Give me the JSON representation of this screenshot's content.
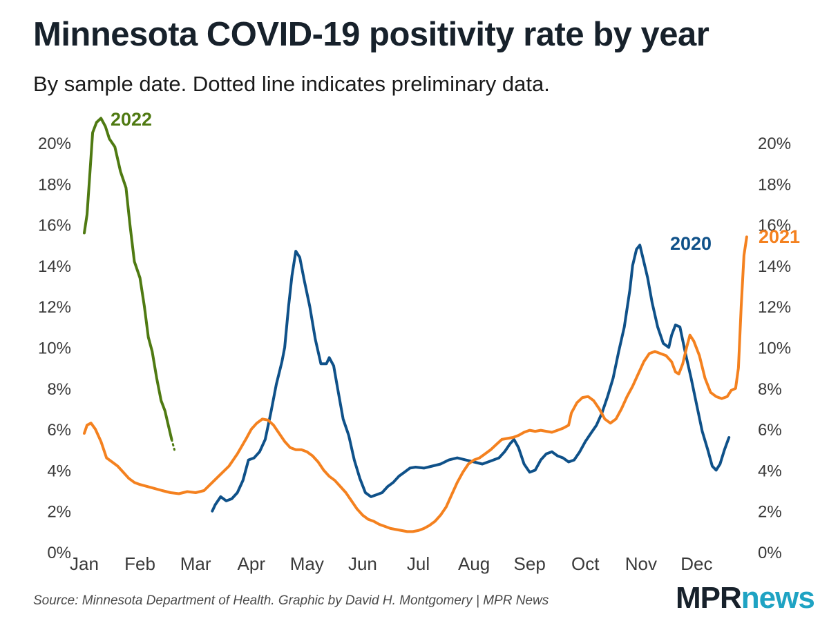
{
  "header": {
    "title": "Minnesota COVID-19 positivity rate by year",
    "subtitle": "By sample date. Dotted line indicates preliminary data."
  },
  "footer": {
    "source": "Source: Minnesota Department of Health. Graphic by David H. Montgomery | MPR News",
    "logo_mpr": "MPR",
    "logo_news": "news"
  },
  "colors": {
    "2020": "#0f5189",
    "2021": "#f4811f",
    "2022": "#4f7a12",
    "axis_text": "#3a3a3a"
  },
  "chart_data": {
    "type": "line",
    "title": "Minnesota COVID-19 positivity rate by year",
    "xlabel": "",
    "ylabel": "",
    "x_domain": [
      0,
      12
    ],
    "ylim": [
      0,
      20
    ],
    "y_ticks": [
      0,
      2,
      4,
      6,
      8,
      10,
      12,
      14,
      16,
      18,
      20
    ],
    "y_tick_labels": [
      "0%",
      "2%",
      "4%",
      "6%",
      "8%",
      "10%",
      "12%",
      "14%",
      "16%",
      "18%",
      "20%"
    ],
    "categories": [
      "Jan",
      "Feb",
      "Mar",
      "Apr",
      "May",
      "Jun",
      "Jul",
      "Aug",
      "Sep",
      "Oct",
      "Nov",
      "Dec"
    ],
    "grid": false,
    "legend": "inline-labels",
    "series": [
      {
        "name": "2020",
        "label": "2020",
        "points": [
          [
            2.3,
            2.0
          ],
          [
            2.35,
            2.3
          ],
          [
            2.45,
            2.7
          ],
          [
            2.55,
            2.5
          ],
          [
            2.65,
            2.6
          ],
          [
            2.75,
            2.9
          ],
          [
            2.85,
            3.5
          ],
          [
            2.95,
            4.5
          ],
          [
            3.05,
            4.6
          ],
          [
            3.15,
            4.9
          ],
          [
            3.25,
            5.5
          ],
          [
            3.35,
            6.8
          ],
          [
            3.45,
            8.2
          ],
          [
            3.55,
            9.3
          ],
          [
            3.6,
            10.0
          ],
          [
            3.67,
            12.0
          ],
          [
            3.73,
            13.5
          ],
          [
            3.8,
            14.7
          ],
          [
            3.87,
            14.4
          ],
          [
            3.95,
            13.3
          ],
          [
            4.05,
            12.0
          ],
          [
            4.15,
            10.4
          ],
          [
            4.25,
            9.2
          ],
          [
            4.35,
            9.2
          ],
          [
            4.4,
            9.5
          ],
          [
            4.48,
            9.1
          ],
          [
            4.55,
            8.0
          ],
          [
            4.65,
            6.5
          ],
          [
            4.75,
            5.7
          ],
          [
            4.85,
            4.5
          ],
          [
            4.95,
            3.6
          ],
          [
            5.05,
            2.9
          ],
          [
            5.15,
            2.7
          ],
          [
            5.25,
            2.8
          ],
          [
            5.35,
            2.9
          ],
          [
            5.45,
            3.2
          ],
          [
            5.55,
            3.4
          ],
          [
            5.65,
            3.7
          ],
          [
            5.75,
            3.9
          ],
          [
            5.85,
            4.1
          ],
          [
            5.95,
            4.15
          ],
          [
            6.1,
            4.1
          ],
          [
            6.25,
            4.2
          ],
          [
            6.4,
            4.3
          ],
          [
            6.55,
            4.5
          ],
          [
            6.7,
            4.6
          ],
          [
            6.85,
            4.5
          ],
          [
            7.0,
            4.4
          ],
          [
            7.15,
            4.3
          ],
          [
            7.3,
            4.45
          ],
          [
            7.45,
            4.6
          ],
          [
            7.55,
            4.9
          ],
          [
            7.65,
            5.3
          ],
          [
            7.72,
            5.5
          ],
          [
            7.8,
            5.1
          ],
          [
            7.9,
            4.3
          ],
          [
            8.0,
            3.9
          ],
          [
            8.1,
            4.0
          ],
          [
            8.2,
            4.5
          ],
          [
            8.3,
            4.8
          ],
          [
            8.4,
            4.9
          ],
          [
            8.5,
            4.7
          ],
          [
            8.6,
            4.6
          ],
          [
            8.7,
            4.4
          ],
          [
            8.8,
            4.5
          ],
          [
            8.9,
            4.9
          ],
          [
            9.0,
            5.4
          ],
          [
            9.1,
            5.8
          ],
          [
            9.2,
            6.2
          ],
          [
            9.3,
            6.8
          ],
          [
            9.4,
            7.6
          ],
          [
            9.5,
            8.5
          ],
          [
            9.6,
            9.8
          ],
          [
            9.7,
            11.0
          ],
          [
            9.8,
            12.8
          ],
          [
            9.85,
            14.0
          ],
          [
            9.92,
            14.8
          ],
          [
            9.98,
            15.0
          ],
          [
            10.05,
            14.2
          ],
          [
            10.12,
            13.4
          ],
          [
            10.2,
            12.2
          ],
          [
            10.3,
            11.0
          ],
          [
            10.4,
            10.2
          ],
          [
            10.5,
            10.0
          ],
          [
            10.55,
            10.6
          ],
          [
            10.62,
            11.1
          ],
          [
            10.7,
            11.0
          ],
          [
            10.8,
            9.7
          ],
          [
            10.9,
            8.5
          ],
          [
            11.0,
            7.2
          ],
          [
            11.1,
            5.9
          ],
          [
            11.2,
            5.0
          ],
          [
            11.28,
            4.2
          ],
          [
            11.35,
            4.0
          ],
          [
            11.42,
            4.3
          ],
          [
            11.5,
            5.0
          ],
          [
            11.58,
            5.6
          ]
        ]
      },
      {
        "name": "2021",
        "label": "2021",
        "points": [
          [
            0.0,
            5.8
          ],
          [
            0.05,
            6.2
          ],
          [
            0.12,
            6.3
          ],
          [
            0.2,
            6.0
          ],
          [
            0.3,
            5.4
          ],
          [
            0.4,
            4.6
          ],
          [
            0.5,
            4.4
          ],
          [
            0.6,
            4.2
          ],
          [
            0.7,
            3.9
          ],
          [
            0.8,
            3.6
          ],
          [
            0.9,
            3.4
          ],
          [
            1.0,
            3.3
          ],
          [
            1.2,
            3.15
          ],
          [
            1.4,
            3.0
          ],
          [
            1.55,
            2.9
          ],
          [
            1.7,
            2.85
          ],
          [
            1.85,
            2.95
          ],
          [
            2.0,
            2.9
          ],
          [
            2.15,
            3.0
          ],
          [
            2.3,
            3.4
          ],
          [
            2.45,
            3.8
          ],
          [
            2.6,
            4.2
          ],
          [
            2.75,
            4.8
          ],
          [
            2.9,
            5.5
          ],
          [
            3.0,
            6.0
          ],
          [
            3.1,
            6.3
          ],
          [
            3.2,
            6.5
          ],
          [
            3.3,
            6.45
          ],
          [
            3.4,
            6.2
          ],
          [
            3.5,
            5.8
          ],
          [
            3.6,
            5.4
          ],
          [
            3.7,
            5.1
          ],
          [
            3.8,
            5.0
          ],
          [
            3.9,
            5.0
          ],
          [
            4.0,
            4.9
          ],
          [
            4.1,
            4.7
          ],
          [
            4.2,
            4.4
          ],
          [
            4.3,
            4.0
          ],
          [
            4.4,
            3.7
          ],
          [
            4.5,
            3.5
          ],
          [
            4.6,
            3.2
          ],
          [
            4.7,
            2.9
          ],
          [
            4.8,
            2.5
          ],
          [
            4.9,
            2.1
          ],
          [
            5.0,
            1.8
          ],
          [
            5.1,
            1.6
          ],
          [
            5.2,
            1.5
          ],
          [
            5.3,
            1.35
          ],
          [
            5.4,
            1.25
          ],
          [
            5.5,
            1.15
          ],
          [
            5.6,
            1.1
          ],
          [
            5.7,
            1.05
          ],
          [
            5.8,
            1.0
          ],
          [
            5.9,
            1.0
          ],
          [
            6.0,
            1.05
          ],
          [
            6.1,
            1.15
          ],
          [
            6.2,
            1.3
          ],
          [
            6.3,
            1.5
          ],
          [
            6.4,
            1.8
          ],
          [
            6.5,
            2.2
          ],
          [
            6.6,
            2.8
          ],
          [
            6.7,
            3.4
          ],
          [
            6.8,
            3.9
          ],
          [
            6.9,
            4.3
          ],
          [
            7.0,
            4.5
          ],
          [
            7.1,
            4.6
          ],
          [
            7.2,
            4.8
          ],
          [
            7.3,
            5.0
          ],
          [
            7.4,
            5.25
          ],
          [
            7.5,
            5.5
          ],
          [
            7.6,
            5.55
          ],
          [
            7.7,
            5.6
          ],
          [
            7.8,
            5.7
          ],
          [
            7.9,
            5.85
          ],
          [
            8.0,
            5.95
          ],
          [
            8.1,
            5.9
          ],
          [
            8.2,
            5.95
          ],
          [
            8.3,
            5.9
          ],
          [
            8.4,
            5.85
          ],
          [
            8.5,
            5.95
          ],
          [
            8.6,
            6.05
          ],
          [
            8.7,
            6.2
          ],
          [
            8.75,
            6.8
          ],
          [
            8.85,
            7.3
          ],
          [
            8.95,
            7.55
          ],
          [
            9.05,
            7.6
          ],
          [
            9.15,
            7.4
          ],
          [
            9.25,
            7.0
          ],
          [
            9.35,
            6.5
          ],
          [
            9.45,
            6.3
          ],
          [
            9.55,
            6.5
          ],
          [
            9.65,
            7.0
          ],
          [
            9.75,
            7.6
          ],
          [
            9.85,
            8.1
          ],
          [
            9.95,
            8.7
          ],
          [
            10.05,
            9.3
          ],
          [
            10.15,
            9.7
          ],
          [
            10.25,
            9.8
          ],
          [
            10.35,
            9.7
          ],
          [
            10.45,
            9.6
          ],
          [
            10.55,
            9.3
          ],
          [
            10.62,
            8.8
          ],
          [
            10.68,
            8.7
          ],
          [
            10.75,
            9.2
          ],
          [
            10.82,
            10.0
          ],
          [
            10.88,
            10.6
          ],
          [
            10.95,
            10.3
          ],
          [
            11.05,
            9.6
          ],
          [
            11.15,
            8.5
          ],
          [
            11.25,
            7.8
          ],
          [
            11.35,
            7.6
          ],
          [
            11.45,
            7.5
          ],
          [
            11.55,
            7.6
          ],
          [
            11.62,
            7.9
          ],
          [
            11.7,
            8.0
          ],
          [
            11.75,
            9.0
          ],
          [
            11.8,
            12.0
          ],
          [
            11.85,
            14.5
          ],
          [
            11.9,
            15.4
          ]
        ]
      },
      {
        "name": "2022",
        "label": "2022",
        "points": [
          [
            0.0,
            15.6
          ],
          [
            0.05,
            16.5
          ],
          [
            0.1,
            18.5
          ],
          [
            0.15,
            20.5
          ],
          [
            0.22,
            21.0
          ],
          [
            0.3,
            21.2
          ],
          [
            0.38,
            20.8
          ],
          [
            0.45,
            20.2
          ],
          [
            0.55,
            19.8
          ],
          [
            0.65,
            18.6
          ],
          [
            0.75,
            17.8
          ],
          [
            0.82,
            16.0
          ],
          [
            0.9,
            14.2
          ],
          [
            1.0,
            13.4
          ],
          [
            1.08,
            12.0
          ],
          [
            1.15,
            10.5
          ],
          [
            1.22,
            9.8
          ],
          [
            1.3,
            8.5
          ],
          [
            1.38,
            7.4
          ],
          [
            1.45,
            6.9
          ],
          [
            1.5,
            6.3
          ],
          [
            1.57,
            5.5
          ]
        ],
        "preliminary_points": [
          [
            1.57,
            5.5
          ],
          [
            1.62,
            5.0
          ]
        ]
      }
    ]
  }
}
